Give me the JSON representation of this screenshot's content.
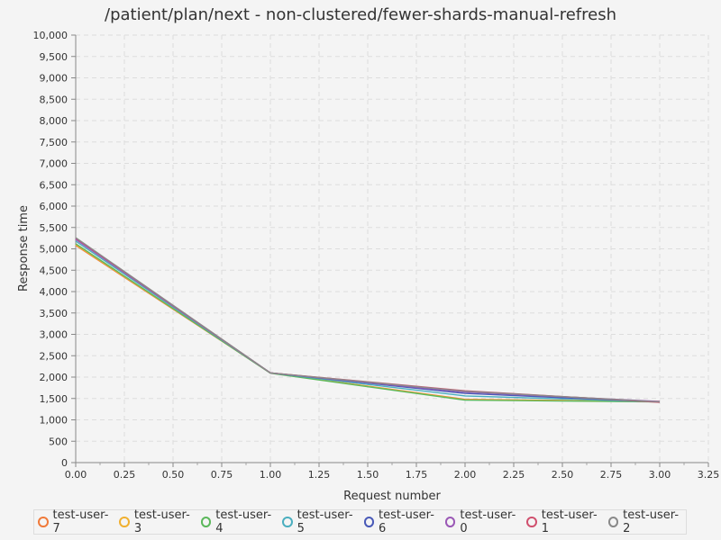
{
  "chart_data": {
    "type": "line",
    "title": "/patient/plan/next - non-clustered/fewer-shards-manual-refresh",
    "xlabel": "Request number",
    "ylabel": "Response time",
    "xlim": [
      0,
      3.25
    ],
    "ylim": [
      0,
      10000
    ],
    "x_ticks": [
      "0.00",
      "0.25",
      "0.50",
      "0.75",
      "1.00",
      "1.25",
      "1.50",
      "1.75",
      "2.00",
      "2.25",
      "2.50",
      "2.75",
      "3.00",
      "3.25"
    ],
    "y_ticks": [
      "0",
      "500",
      "1,000",
      "1,500",
      "2,000",
      "2,500",
      "3,000",
      "3,500",
      "4,000",
      "4,500",
      "5,000",
      "5,500",
      "6,000",
      "6,500",
      "7,000",
      "7,500",
      "8,000",
      "8,500",
      "9,000",
      "9,500",
      "10,000"
    ],
    "grid": true,
    "legend_position": "bottom",
    "x": [
      0,
      1,
      2,
      3
    ],
    "series": [
      {
        "name": "test-user-7",
        "color": "#f07a3a",
        "values": [
          5080,
          2100,
          1480,
          1430
        ]
      },
      {
        "name": "test-user-3",
        "color": "#f0b030",
        "values": [
          5100,
          2100,
          1470,
          1430
        ]
      },
      {
        "name": "test-user-4",
        "color": "#5cb85c",
        "values": [
          5120,
          2090,
          1460,
          1420
        ]
      },
      {
        "name": "test-user-5",
        "color": "#4aaebf",
        "values": [
          5180,
          2100,
          1560,
          1420
        ]
      },
      {
        "name": "test-user-6",
        "color": "#4a5ab8",
        "values": [
          5240,
          2100,
          1620,
          1420
        ]
      },
      {
        "name": "test-user-0",
        "color": "#9b59b6",
        "values": [
          5220,
          2100,
          1650,
          1430
        ]
      },
      {
        "name": "test-user-1",
        "color": "#d0506e",
        "values": [
          5250,
          2100,
          1680,
          1410
        ]
      },
      {
        "name": "test-user-2",
        "color": "#8a8a8a",
        "values": [
          5260,
          2100,
          1670,
          1420
        ]
      }
    ]
  }
}
